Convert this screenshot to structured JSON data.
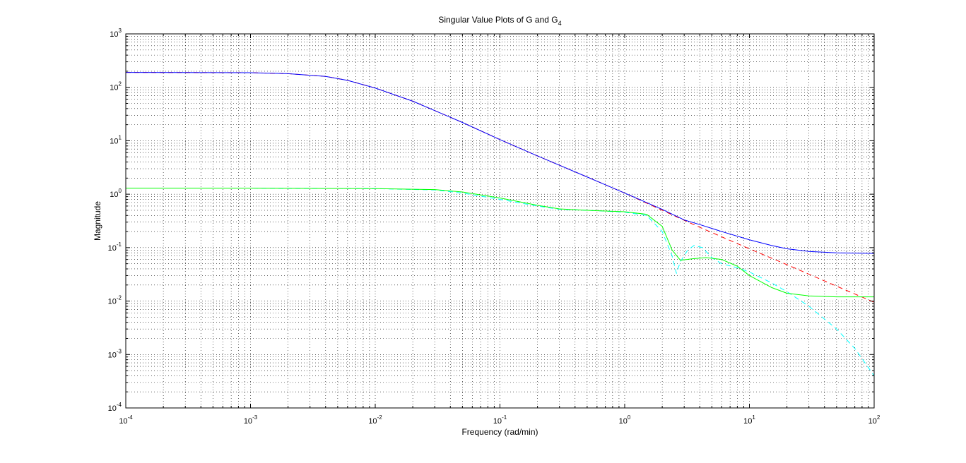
{
  "chart_data": {
    "type": "line",
    "title_main": "Singular Value Plots of G and G",
    "title_sub": "4",
    "xlabel": "Frequency (rad/min)",
    "ylabel": "Magnitude",
    "xscale": "log",
    "yscale": "log",
    "xlim": [
      0.0001,
      100
    ],
    "ylim": [
      0.0001,
      1000
    ],
    "grid": true,
    "x_ticks": [
      {
        "value": 0.0001,
        "base": "10",
        "exp": "-4"
      },
      {
        "value": 0.001,
        "base": "10",
        "exp": "-3"
      },
      {
        "value": 0.01,
        "base": "10",
        "exp": "-2"
      },
      {
        "value": 0.1,
        "base": "10",
        "exp": "-1"
      },
      {
        "value": 1,
        "base": "10",
        "exp": "0"
      },
      {
        "value": 10,
        "base": "10",
        "exp": "1"
      },
      {
        "value": 100,
        "base": "10",
        "exp": "2"
      }
    ],
    "y_ticks": [
      {
        "value": 0.0001,
        "base": "10",
        "exp": "-4"
      },
      {
        "value": 0.001,
        "base": "10",
        "exp": "-3"
      },
      {
        "value": 0.01,
        "base": "10",
        "exp": "-2"
      },
      {
        "value": 0.1,
        "base": "10",
        "exp": "-1"
      },
      {
        "value": 1,
        "base": "10",
        "exp": "0"
      },
      {
        "value": 10,
        "base": "10",
        "exp": "1"
      },
      {
        "value": 100,
        "base": "10",
        "exp": "2"
      },
      {
        "value": 1000,
        "base": "10",
        "exp": "3"
      }
    ],
    "series": [
      {
        "color": "#ff0000",
        "style": "dashed",
        "points": [
          [
            0.0001,
            190
          ],
          [
            0.001,
            188
          ],
          [
            0.002,
            180
          ],
          [
            0.004,
            160
          ],
          [
            0.006,
            135
          ],
          [
            0.01,
            97
          ],
          [
            0.02,
            55
          ],
          [
            0.05,
            22
          ],
          [
            0.1,
            10.5
          ],
          [
            0.2,
            5.2
          ],
          [
            0.5,
            2.1
          ],
          [
            1,
            1.05
          ],
          [
            2,
            0.5
          ],
          [
            4,
            0.24
          ],
          [
            10,
            0.095
          ],
          [
            20,
            0.048
          ],
          [
            50,
            0.019
          ],
          [
            100,
            0.0095
          ]
        ]
      },
      {
        "color": "#0000ff",
        "style": "solid",
        "points": [
          [
            0.0001,
            190
          ],
          [
            0.001,
            188
          ],
          [
            0.002,
            180
          ],
          [
            0.004,
            160
          ],
          [
            0.006,
            135
          ],
          [
            0.01,
            97
          ],
          [
            0.02,
            55
          ],
          [
            0.05,
            22
          ],
          [
            0.1,
            10.5
          ],
          [
            0.2,
            5.2
          ],
          [
            0.5,
            2.1
          ],
          [
            1,
            1.05
          ],
          [
            2,
            0.52
          ],
          [
            3,
            0.33
          ],
          [
            4,
            0.27
          ],
          [
            6,
            0.2
          ],
          [
            10,
            0.14
          ],
          [
            15,
            0.11
          ],
          [
            20,
            0.095
          ],
          [
            30,
            0.085
          ],
          [
            50,
            0.08
          ],
          [
            100,
            0.078
          ]
        ]
      },
      {
        "color": "#00ffff",
        "style": "dashed",
        "points": [
          [
            0.0001,
            1.3
          ],
          [
            0.001,
            1.3
          ],
          [
            0.01,
            1.27
          ],
          [
            0.03,
            1.2
          ],
          [
            0.05,
            1.05
          ],
          [
            0.1,
            0.8
          ],
          [
            0.2,
            0.6
          ],
          [
            0.3,
            0.52
          ],
          [
            0.5,
            0.5
          ],
          [
            1,
            0.46
          ],
          [
            1.5,
            0.4
          ],
          [
            2,
            0.2
          ],
          [
            2.4,
            0.07
          ],
          [
            2.6,
            0.033
          ],
          [
            2.8,
            0.055
          ],
          [
            3.2,
            0.09
          ],
          [
            3.6,
            0.11
          ],
          [
            4.2,
            0.1
          ],
          [
            5,
            0.065
          ],
          [
            6,
            0.05
          ],
          [
            8,
            0.042
          ],
          [
            10,
            0.035
          ],
          [
            15,
            0.022
          ],
          [
            20,
            0.015
          ],
          [
            30,
            0.008
          ],
          [
            50,
            0.003
          ],
          [
            70,
            0.0013
          ],
          [
            100,
            0.0004
          ]
        ]
      },
      {
        "color": "#00ff00",
        "style": "solid",
        "points": [
          [
            0.0001,
            1.3
          ],
          [
            0.001,
            1.3
          ],
          [
            0.01,
            1.27
          ],
          [
            0.03,
            1.22
          ],
          [
            0.05,
            1.1
          ],
          [
            0.1,
            0.85
          ],
          [
            0.2,
            0.62
          ],
          [
            0.3,
            0.53
          ],
          [
            0.5,
            0.5
          ],
          [
            1,
            0.47
          ],
          [
            1.5,
            0.42
          ],
          [
            2,
            0.25
          ],
          [
            2.4,
            0.09
          ],
          [
            2.8,
            0.058
          ],
          [
            3.5,
            0.062
          ],
          [
            4.5,
            0.065
          ],
          [
            6,
            0.06
          ],
          [
            8,
            0.045
          ],
          [
            10,
            0.03
          ],
          [
            15,
            0.018
          ],
          [
            20,
            0.014
          ],
          [
            30,
            0.0125
          ],
          [
            50,
            0.012
          ],
          [
            100,
            0.012
          ]
        ]
      }
    ]
  }
}
